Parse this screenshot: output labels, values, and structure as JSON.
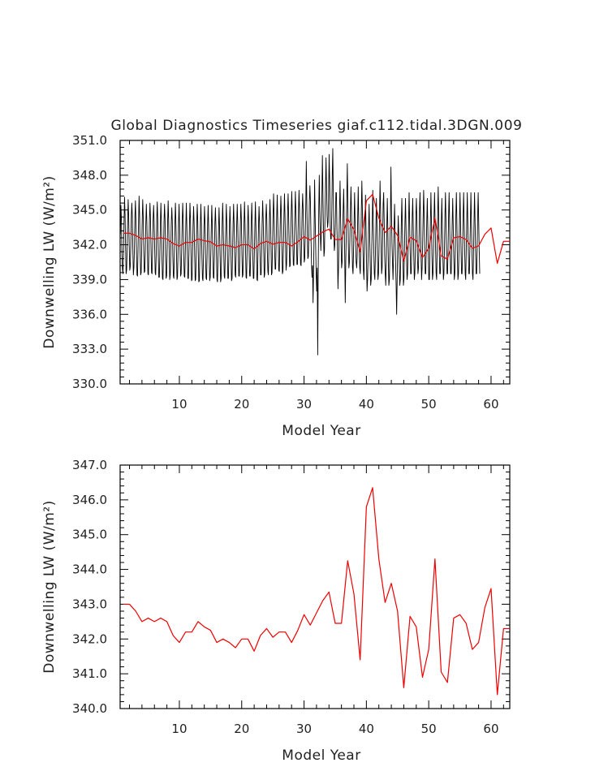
{
  "chart_data": [
    {
      "type": "line",
      "title": "Global Diagnostics Timeseries giaf.c112.tidal.3DGN.009",
      "xlabel": "Model Year",
      "ylabel": "Downwelling LW (W/m²)",
      "xlim": [
        0.5,
        63
      ],
      "ylim": [
        330.0,
        351.0
      ],
      "x_ticks": [
        10,
        20,
        30,
        40,
        50,
        60
      ],
      "y_ticks": [
        "330.0",
        "333.0",
        "336.0",
        "339.0",
        "342.0",
        "345.0",
        "348.0",
        "351.0"
      ],
      "grid": false,
      "legend": "none",
      "series": [
        {
          "color": "#000000",
          "resolution": "monthly",
          "x_start": 0.54,
          "x_step": 0.0833,
          "values": [
            342.9,
            345.4,
            344.2,
            341.2,
            339.9,
            339.5,
            341.3,
            344.0,
            346.1,
            344.6,
            341.8,
            339.5,
            339.8,
            341.6,
            344.0,
            345.9,
            344.4,
            341.9,
            339.8,
            340.1,
            341.7,
            344.4,
            345.6,
            344.5,
            341.6,
            339.4,
            340.0,
            341.6,
            344.5,
            345.8,
            344.0,
            341.3,
            339.4,
            339.3,
            341.6,
            344.0,
            346.2,
            344.5,
            341.5,
            339.4,
            339.6,
            341.6,
            344.1,
            345.9,
            344.4,
            341.5,
            339.6,
            339.7,
            341.5,
            343.9,
            345.5,
            343.9,
            341.6,
            339.5,
            339.4,
            341.7,
            344.2,
            345.6,
            344.2,
            341.6,
            339.6,
            339.5,
            341.6,
            344.2,
            345.4,
            344.0,
            341.8,
            339.6,
            339.4,
            341.2,
            344.2,
            345.7,
            344.1,
            341.1,
            339.2,
            339.2,
            341.0,
            343.9,
            345.6,
            343.9,
            341.0,
            339.1,
            339.0,
            341.4,
            344.0,
            345.5,
            344.2,
            341.1,
            339.1,
            339.3,
            341.3,
            344.0,
            345.8,
            344.0,
            341.5,
            339.0,
            339.4,
            341.2,
            343.9,
            345.2,
            344.0,
            341.0,
            339.3,
            339.1,
            341.4,
            343.9,
            345.6,
            343.8,
            341.3,
            339.0,
            339.2,
            341.3,
            343.9,
            345.5,
            343.6,
            341.3,
            339.3,
            339.5,
            341.4,
            343.9,
            345.6,
            344.1,
            341.1,
            339.3,
            339.2,
            341.4,
            343.7,
            345.6,
            343.6,
            341.2,
            339.1,
            339.1,
            341.2,
            343.8,
            345.6,
            344.1,
            341.3,
            338.9,
            339.0,
            341.3,
            343.8,
            345.3,
            343.8,
            341.2,
            338.9,
            339.0,
            340.9,
            343.8,
            345.5,
            344.0,
            341.3,
            338.8,
            338.9,
            341.1,
            343.8,
            345.5,
            343.8,
            341.0,
            339.1,
            338.9,
            341.0,
            343.6,
            345.3,
            343.8,
            340.9,
            339.1,
            339.0,
            341.1,
            343.8,
            345.4,
            343.5,
            341.2,
            338.9,
            339.2,
            341.0,
            343.4,
            345.4,
            343.7,
            341.3,
            339.2,
            339.1,
            341.0,
            343.9,
            345.2,
            343.6,
            341.1,
            339.0,
            338.8,
            340.9,
            343.4,
            345.2,
            343.4,
            340.9,
            338.8,
            339.1,
            341.4,
            343.9,
            345.6,
            343.7,
            341.4,
            339.3,
            339.1,
            341.3,
            343.5,
            345.5,
            343.7,
            341.3,
            339.1,
            339.1,
            341.0,
            343.7,
            345.3,
            343.6,
            341.1,
            338.9,
            339.1,
            341.3,
            343.8,
            345.5,
            343.8,
            341.4,
            339.4,
            339.2,
            341.4,
            343.8,
            345.5,
            343.8,
            341.5,
            339.3,
            339.3,
            341.2,
            343.7,
            345.5,
            344.2,
            341.3,
            339.2,
            339.4,
            341.4,
            343.8,
            345.7,
            343.9,
            341.5,
            339.2,
            339.1,
            341.5,
            343.8,
            345.4,
            343.9,
            341.3,
            339.3,
            339.3,
            341.4,
            343.9,
            345.6,
            343.8,
            341.1,
            339.1,
            339.1,
            341.3,
            343.7,
            345.7,
            343.6,
            341.5,
            339.0,
            338.9,
            341.4,
            343.7,
            345.3,
            343.8,
            341.0,
            339.4,
            339.4,
            341.4,
            344.0,
            345.8,
            344.2,
            341.7,
            339.2,
            339.5,
            341.6,
            344.3,
            345.5,
            344.1,
            341.4,
            339.7,
            339.4,
            341.7,
            344.1,
            345.9,
            344.3,
            341.9,
            339.4,
            339.6,
            341.9,
            344.5,
            346.4,
            344.5,
            341.6,
            339.9,
            339.9,
            342.3,
            344.4,
            346.3,
            344.1,
            342.2,
            339.8,
            339.7,
            342.0,
            344.3,
            346.2,
            344.7,
            341.6,
            339.5,
            339.7,
            342.0,
            344.5,
            346.4,
            344.4,
            342.0,
            339.8,
            340.3,
            342.2,
            344.8,
            346.4,
            344.5,
            342.0,
            340.1,
            340.2,
            342.5,
            344.8,
            346.6,
            344.8,
            342.5,
            340.3,
            340.2,
            342.3,
            344.7,
            346.6,
            344.7,
            342.6,
            340.3,
            340.3,
            342.5,
            344.9,
            346.7,
            345.0,
            342.4,
            340.3,
            340.2,
            342.4,
            345.0,
            346.4,
            344.9,
            342.3,
            340.5,
            340.8,
            342.9,
            345.2,
            349.2,
            345.5,
            342.8,
            340.8,
            341.0,
            343.1,
            345.8,
            347.1,
            345.7,
            342.7,
            340.5,
            339.2,
            340.2,
            337.0,
            339.5,
            343.0,
            347.6,
            344.5,
            342.0,
            339.5,
            338.0,
            340.0,
            332.5,
            340.0,
            345.0,
            348.0,
            345.0,
            343.0,
            341.5,
            343.0,
            346.0,
            349.7,
            346.5,
            343.5,
            341.0,
            341.5,
            344.5,
            347.0,
            349.5,
            347.0,
            344.5,
            343.5,
            344.0,
            346.5,
            349.8,
            347.5,
            344.0,
            342.5,
            342.5,
            344.5,
            348.0,
            350.3,
            346.5,
            343.0,
            341.5,
            342.0,
            344.0,
            346.5,
            346.5,
            343.5,
            341.5,
            338.2,
            340.0,
            342.5,
            345.0,
            347.5,
            344.5,
            342.0,
            340.0,
            340.5,
            343.0,
            345.0,
            346.8,
            344.0,
            341.0,
            337.0,
            340.5,
            343.0,
            346.0,
            349.0,
            345.5,
            342.0,
            340.0,
            340.5,
            342.5,
            345.0,
            347.0,
            345.0,
            342.5,
            340.0,
            339.5,
            341.5,
            344.0,
            346.5,
            344.0,
            342.0,
            340.5,
            340.0,
            341.0,
            344.5,
            347.0,
            344.0,
            341.5,
            340.0,
            339.5,
            342.0,
            345.0,
            347.5,
            345.0,
            342.0,
            339.8,
            339.0,
            341.5,
            343.5,
            346.3,
            343.5,
            340.5,
            338.0,
            339.0,
            341.0,
            343.5,
            345.5,
            343.0,
            340.5,
            338.5,
            339.0,
            341.5,
            344.0,
            346.7,
            344.0,
            341.5,
            339.5,
            339.0,
            341.0,
            343.5,
            346.0,
            344.0,
            341.0,
            339.0,
            339.5,
            341.5,
            344.5,
            347.5,
            345.0,
            342.0,
            339.5,
            340.0,
            342.5,
            345.5,
            346.5,
            344.0,
            341.0,
            339.5,
            338.5,
            340.5,
            343.5,
            346.0,
            343.5,
            340.5,
            338.5,
            339.0,
            341.5,
            344.0,
            348.7,
            345.0,
            342.0,
            340.5,
            339.0,
            341.0,
            343.5,
            345.5,
            343.0,
            340.5,
            338.5,
            336.0,
            339.0,
            342.0,
            344.5,
            343.0,
            340.5,
            338.5,
            339.0,
            341.0,
            344.0,
            346.0,
            343.5,
            341.0,
            338.5,
            339.0,
            341.5,
            344.0,
            346.0,
            343.5,
            341.0,
            339.0,
            339.5,
            341.5,
            344.0,
            346.5,
            344.0,
            341.5,
            339.5,
            339.5,
            341.5,
            344.5,
            346.0,
            343.5,
            341.0,
            339.0,
            339.5,
            341.5,
            344.5,
            346.0,
            344.0,
            341.0,
            339.5,
            340.0,
            342.0,
            345.0,
            346.5,
            344.0,
            341.0,
            339.0,
            340.0,
            342.0,
            344.5,
            346.7,
            344.5,
            341.5,
            339.5,
            339.5,
            341.5,
            344.0,
            346.0,
            343.5,
            341.0,
            339.0,
            339.0,
            341.5,
            344.0,
            346.5,
            344.0,
            341.0,
            339.0,
            339.5,
            341.5,
            344.5,
            346.5,
            344.0,
            341.5,
            339.5,
            339.0,
            341.5,
            344.5,
            347.0,
            344.5,
            341.5,
            339.5,
            339.5,
            341.5,
            344.0,
            346.0,
            343.5,
            341.0,
            339.0,
            339.5,
            341.5,
            344.5,
            346.5,
            344.0,
            341.5,
            339.5,
            339.5,
            341.5,
            344.5,
            346.5,
            344.0,
            341.5,
            339.5,
            339.5,
            341.5,
            344.0,
            346.0,
            343.5,
            341.0,
            339.0,
            339.5,
            341.5,
            344.5,
            346.5,
            344.0,
            341.0,
            339.0,
            339.5,
            341.5,
            344.0,
            346.5,
            344.0,
            341.5,
            339.5,
            339.5,
            341.5,
            344.5,
            346.5,
            344.0,
            341.5,
            339.5,
            339.0,
            341.5,
            344.0,
            346.5,
            344.0,
            341.5,
            339.5,
            339.5,
            341.5,
            344.0,
            346.5,
            344.0,
            341.5,
            339.5,
            339.0,
            341.0,
            344.0,
            346.5,
            344.0,
            341.5,
            339.5,
            339.5,
            341.5,
            344.5,
            346.5,
            344.0,
            341.5,
            339.5
          ]
        },
        {
          "color": "#ee0000",
          "resolution": "annual",
          "x": [
            1,
            2,
            3,
            4,
            5,
            6,
            7,
            8,
            9,
            10,
            11,
            12,
            13,
            14,
            15,
            16,
            17,
            18,
            19,
            20,
            21,
            22,
            23,
            24,
            25,
            26,
            27,
            28,
            29,
            30,
            31,
            32,
            33,
            34,
            35,
            36,
            37,
            38,
            39,
            40,
            41,
            42,
            43,
            44,
            45,
            46,
            47,
            48,
            49,
            50,
            51,
            52,
            53,
            54,
            55,
            56,
            57,
            58,
            59,
            60,
            61,
            62,
            63
          ],
          "values": [
            343.0,
            343.0,
            342.8,
            342.5,
            342.6,
            342.5,
            342.6,
            342.5,
            342.1,
            341.9,
            342.2,
            342.2,
            342.5,
            342.35,
            342.25,
            341.9,
            342.0,
            341.9,
            341.75,
            342.0,
            342.0,
            341.65,
            342.1,
            342.3,
            342.05,
            342.2,
            342.2,
            341.9,
            342.25,
            342.7,
            342.4,
            342.75,
            343.1,
            343.35,
            342.45,
            342.45,
            344.25,
            343.3,
            341.4,
            345.8,
            346.35,
            344.3,
            343.05,
            343.6,
            342.8,
            340.6,
            342.65,
            342.35,
            340.9,
            341.7,
            344.3,
            341.05,
            340.75,
            342.6,
            342.7,
            342.45,
            341.7,
            341.9,
            342.9,
            343.45,
            340.4,
            342.3,
            342.3
          ]
        }
      ]
    },
    {
      "type": "line",
      "title": "",
      "xlabel": "Model Year",
      "ylabel": "Downwelling LW (W/m²)",
      "xlim": [
        0.5,
        63
      ],
      "ylim": [
        340.0,
        347.0
      ],
      "x_ticks": [
        10,
        20,
        30,
        40,
        50,
        60
      ],
      "y_ticks": [
        "340.0",
        "341.0",
        "342.0",
        "343.0",
        "344.0",
        "345.0",
        "346.0",
        "347.0"
      ],
      "grid": false,
      "legend": "none",
      "series": [
        {
          "color": "#ee0000",
          "resolution": "annual",
          "x": [
            1,
            2,
            3,
            4,
            5,
            6,
            7,
            8,
            9,
            10,
            11,
            12,
            13,
            14,
            15,
            16,
            17,
            18,
            19,
            20,
            21,
            22,
            23,
            24,
            25,
            26,
            27,
            28,
            29,
            30,
            31,
            32,
            33,
            34,
            35,
            36,
            37,
            38,
            39,
            40,
            41,
            42,
            43,
            44,
            45,
            46,
            47,
            48,
            49,
            50,
            51,
            52,
            53,
            54,
            55,
            56,
            57,
            58,
            59,
            60,
            61,
            62,
            63
          ],
          "values": [
            343.0,
            343.0,
            342.8,
            342.5,
            342.6,
            342.5,
            342.6,
            342.5,
            342.1,
            341.9,
            342.2,
            342.2,
            342.5,
            342.35,
            342.25,
            341.9,
            342.0,
            341.9,
            341.75,
            342.0,
            342.0,
            341.65,
            342.1,
            342.3,
            342.05,
            342.2,
            342.2,
            341.9,
            342.25,
            342.7,
            342.4,
            342.75,
            343.1,
            343.35,
            342.45,
            342.45,
            344.25,
            343.3,
            341.4,
            345.8,
            346.35,
            344.3,
            343.05,
            343.6,
            342.8,
            340.6,
            342.65,
            342.35,
            340.9,
            341.7,
            344.3,
            341.05,
            340.75,
            342.6,
            342.7,
            342.45,
            341.7,
            341.9,
            342.9,
            343.45,
            340.4,
            342.3,
            342.3
          ]
        }
      ]
    }
  ]
}
